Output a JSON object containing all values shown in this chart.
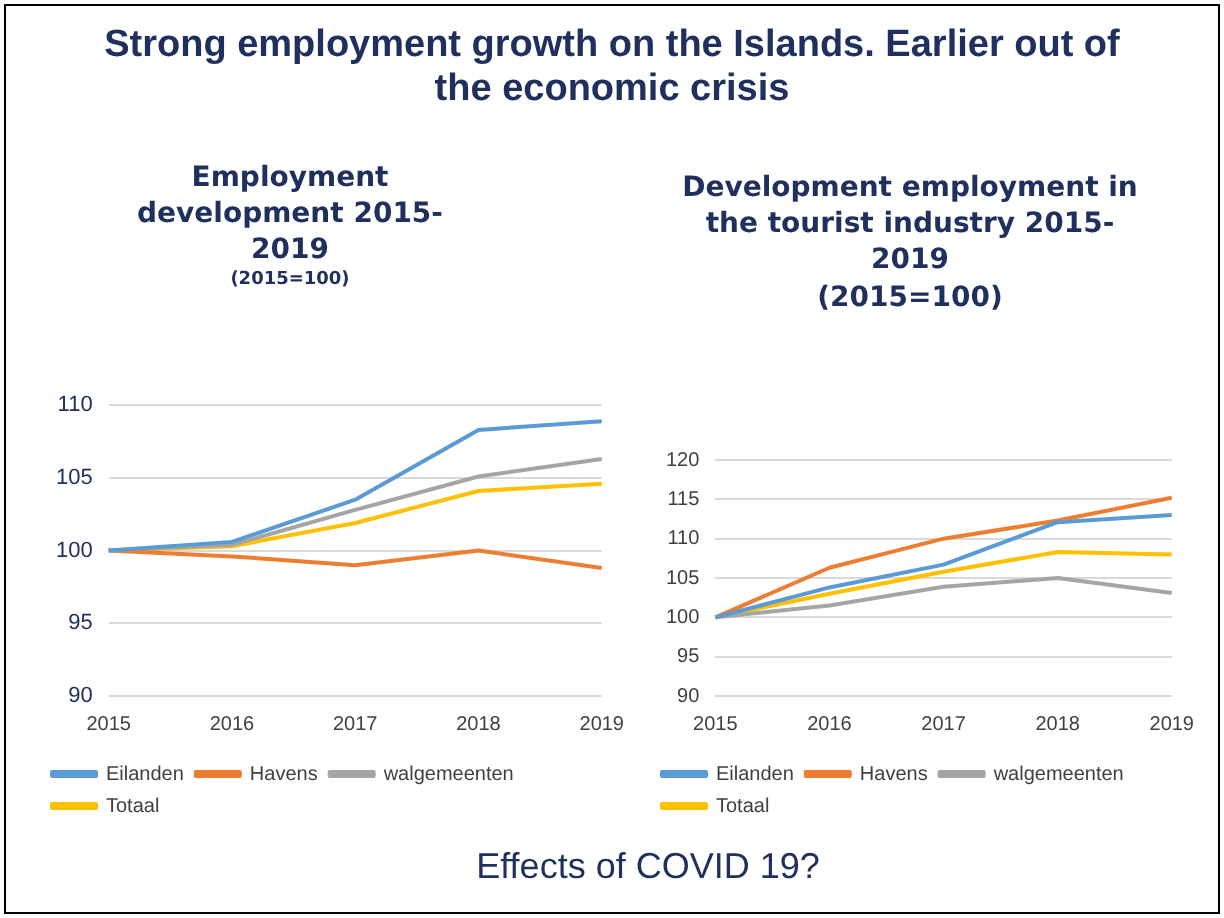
{
  "chart_data": [
    {
      "type": "line",
      "title": "Employment development 2015-2019",
      "subtitle": "(2015=100)",
      "annotations": [
        "Strong employment growth on the Islands. Earlier out of the economic crisis"
      ],
      "categories": [
        "2015",
        "2016",
        "2017",
        "2018",
        "2019"
      ],
      "series": [
        {
          "name": "Eilanden",
          "color": "#5b9bd5",
          "values": [
            100,
            100.6,
            103.5,
            108.3,
            108.9
          ]
        },
        {
          "name": "Havens",
          "color": "#ed7d31",
          "values": [
            100,
            99.6,
            99.0,
            100.0,
            98.8
          ]
        },
        {
          "name": "walgemeenten",
          "color": "#a5a5a5",
          "values": [
            100,
            100.4,
            102.8,
            105.1,
            106.3
          ]
        },
        {
          "name": "Totaal",
          "color": "#ffc000",
          "values": [
            100,
            100.3,
            101.9,
            104.1,
            104.6
          ]
        }
      ],
      "ylim": [
        90,
        110
      ],
      "yticks": [
        90,
        95,
        100,
        105,
        110
      ],
      "grid": "y",
      "legend": "bottom",
      "marker": "none"
    },
    {
      "type": "line",
      "title": "Development employment in the tourist industry 2015-2019",
      "subtitle": "(2015=100)",
      "annotations": [
        "Effects of COVID 19?"
      ],
      "categories": [
        "2015",
        "2016",
        "2017",
        "2018",
        "2019"
      ],
      "series": [
        {
          "name": "Eilanden",
          "color": "#5b9bd5",
          "values": [
            100,
            103.8,
            106.7,
            112.1,
            113.0
          ]
        },
        {
          "name": "Havens",
          "color": "#ed7d31",
          "values": [
            100,
            106.3,
            110.0,
            112.3,
            115.2
          ]
        },
        {
          "name": "walgemeenten",
          "color": "#a5a5a5",
          "values": [
            100,
            101.5,
            103.9,
            105.0,
            103.1
          ]
        },
        {
          "name": "Totaal",
          "color": "#ffc000",
          "values": [
            100,
            103.0,
            105.8,
            108.3,
            108.0
          ]
        }
      ],
      "ylim": [
        90,
        120
      ],
      "yticks": [
        90,
        95,
        100,
        105,
        110,
        115,
        120
      ],
      "grid": "y",
      "legend": "bottom",
      "marker": "none"
    }
  ]
}
